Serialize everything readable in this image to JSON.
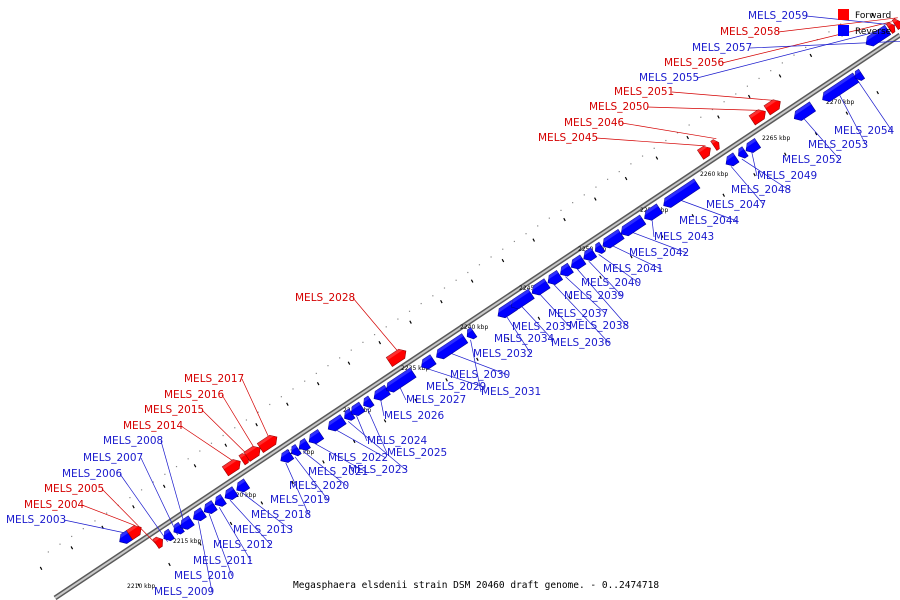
{
  "colors": {
    "forward": "#ff0000",
    "forward_label": "#d40000",
    "reverse": "#0000ff",
    "reverse_label": "#1a1acd",
    "backbone": "#8c8c8c"
  },
  "legend": {
    "forward": "Forward",
    "reverse": "Reverse"
  },
  "caption": "Megasphaera elsdenii strain DSM 20460 draft genome. - 0..2474718",
  "ticks": [
    "2210 kbp",
    "2215 kbp",
    "2220 kbp",
    "2225 kbp",
    "2230 kbp",
    "2235 kbp",
    "2240 kbp",
    "2245 kbp",
    "2250 kbp",
    "2255 kbp",
    "2260 kbp",
    "2265 kbp",
    "2270 kbp"
  ],
  "genes": [
    {
      "name": "MELS_2003",
      "strand": "reverse"
    },
    {
      "name": "MELS_2004",
      "strand": "forward"
    },
    {
      "name": "MELS_2005",
      "strand": "forward"
    },
    {
      "name": "MELS_2006",
      "strand": "reverse"
    },
    {
      "name": "MELS_2007",
      "strand": "reverse"
    },
    {
      "name": "MELS_2008",
      "strand": "reverse"
    },
    {
      "name": "MELS_2009",
      "strand": "reverse"
    },
    {
      "name": "MELS_2010",
      "strand": "reverse"
    },
    {
      "name": "MELS_2011",
      "strand": "reverse"
    },
    {
      "name": "MELS_2012",
      "strand": "reverse"
    },
    {
      "name": "MELS_2013",
      "strand": "reverse"
    },
    {
      "name": "MELS_2014",
      "strand": "forward"
    },
    {
      "name": "MELS_2015",
      "strand": "forward"
    },
    {
      "name": "MELS_2016",
      "strand": "forward"
    },
    {
      "name": "MELS_2017",
      "strand": "forward"
    },
    {
      "name": "MELS_2018",
      "strand": "reverse"
    },
    {
      "name": "MELS_2019",
      "strand": "reverse"
    },
    {
      "name": "MELS_2020",
      "strand": "reverse"
    },
    {
      "name": "MELS_2021",
      "strand": "reverse"
    },
    {
      "name": "MELS_2022",
      "strand": "reverse"
    },
    {
      "name": "MELS_2023",
      "strand": "reverse"
    },
    {
      "name": "MELS_2024",
      "strand": "reverse"
    },
    {
      "name": "MELS_2025",
      "strand": "reverse"
    },
    {
      "name": "MELS_2026",
      "strand": "reverse"
    },
    {
      "name": "MELS_2027",
      "strand": "reverse"
    },
    {
      "name": "MELS_2028",
      "strand": "forward"
    },
    {
      "name": "MELS_2029",
      "strand": "reverse"
    },
    {
      "name": "MELS_2030",
      "strand": "reverse"
    },
    {
      "name": "MELS_2031",
      "strand": "reverse"
    },
    {
      "name": "MELS_2032",
      "strand": "reverse"
    },
    {
      "name": "MELS_2034",
      "strand": "reverse"
    },
    {
      "name": "MELS_2035",
      "strand": "reverse"
    },
    {
      "name": "MELS_2036",
      "strand": "reverse"
    },
    {
      "name": "MELS_2037",
      "strand": "reverse"
    },
    {
      "name": "MELS_2038",
      "strand": "reverse"
    },
    {
      "name": "MELS_2039",
      "strand": "reverse"
    },
    {
      "name": "MELS_2040",
      "strand": "reverse"
    },
    {
      "name": "MELS_2041",
      "strand": "reverse"
    },
    {
      "name": "MELS_2042",
      "strand": "reverse"
    },
    {
      "name": "MELS_2043",
      "strand": "reverse"
    },
    {
      "name": "MELS_2044",
      "strand": "reverse"
    },
    {
      "name": "MELS_2045",
      "strand": "forward"
    },
    {
      "name": "MELS_2046",
      "strand": "forward"
    },
    {
      "name": "MELS_2047",
      "strand": "reverse"
    },
    {
      "name": "MELS_2048",
      "strand": "reverse"
    },
    {
      "name": "MELS_2049",
      "strand": "reverse"
    },
    {
      "name": "MELS_2050",
      "strand": "forward"
    },
    {
      "name": "MELS_2051",
      "strand": "forward"
    },
    {
      "name": "MELS_2052",
      "strand": "reverse"
    },
    {
      "name": "MELS_2053",
      "strand": "reverse"
    },
    {
      "name": "MELS_2054",
      "strand": "reverse"
    },
    {
      "name": "MELS_2055",
      "strand": "reverse"
    },
    {
      "name": "MELS_2056",
      "strand": "forward"
    },
    {
      "name": "MELS_2057",
      "strand": "reverse"
    },
    {
      "name": "MELS_2058",
      "strand": "forward"
    },
    {
      "name": "MELS_2059",
      "strand": "reverse"
    }
  ]
}
